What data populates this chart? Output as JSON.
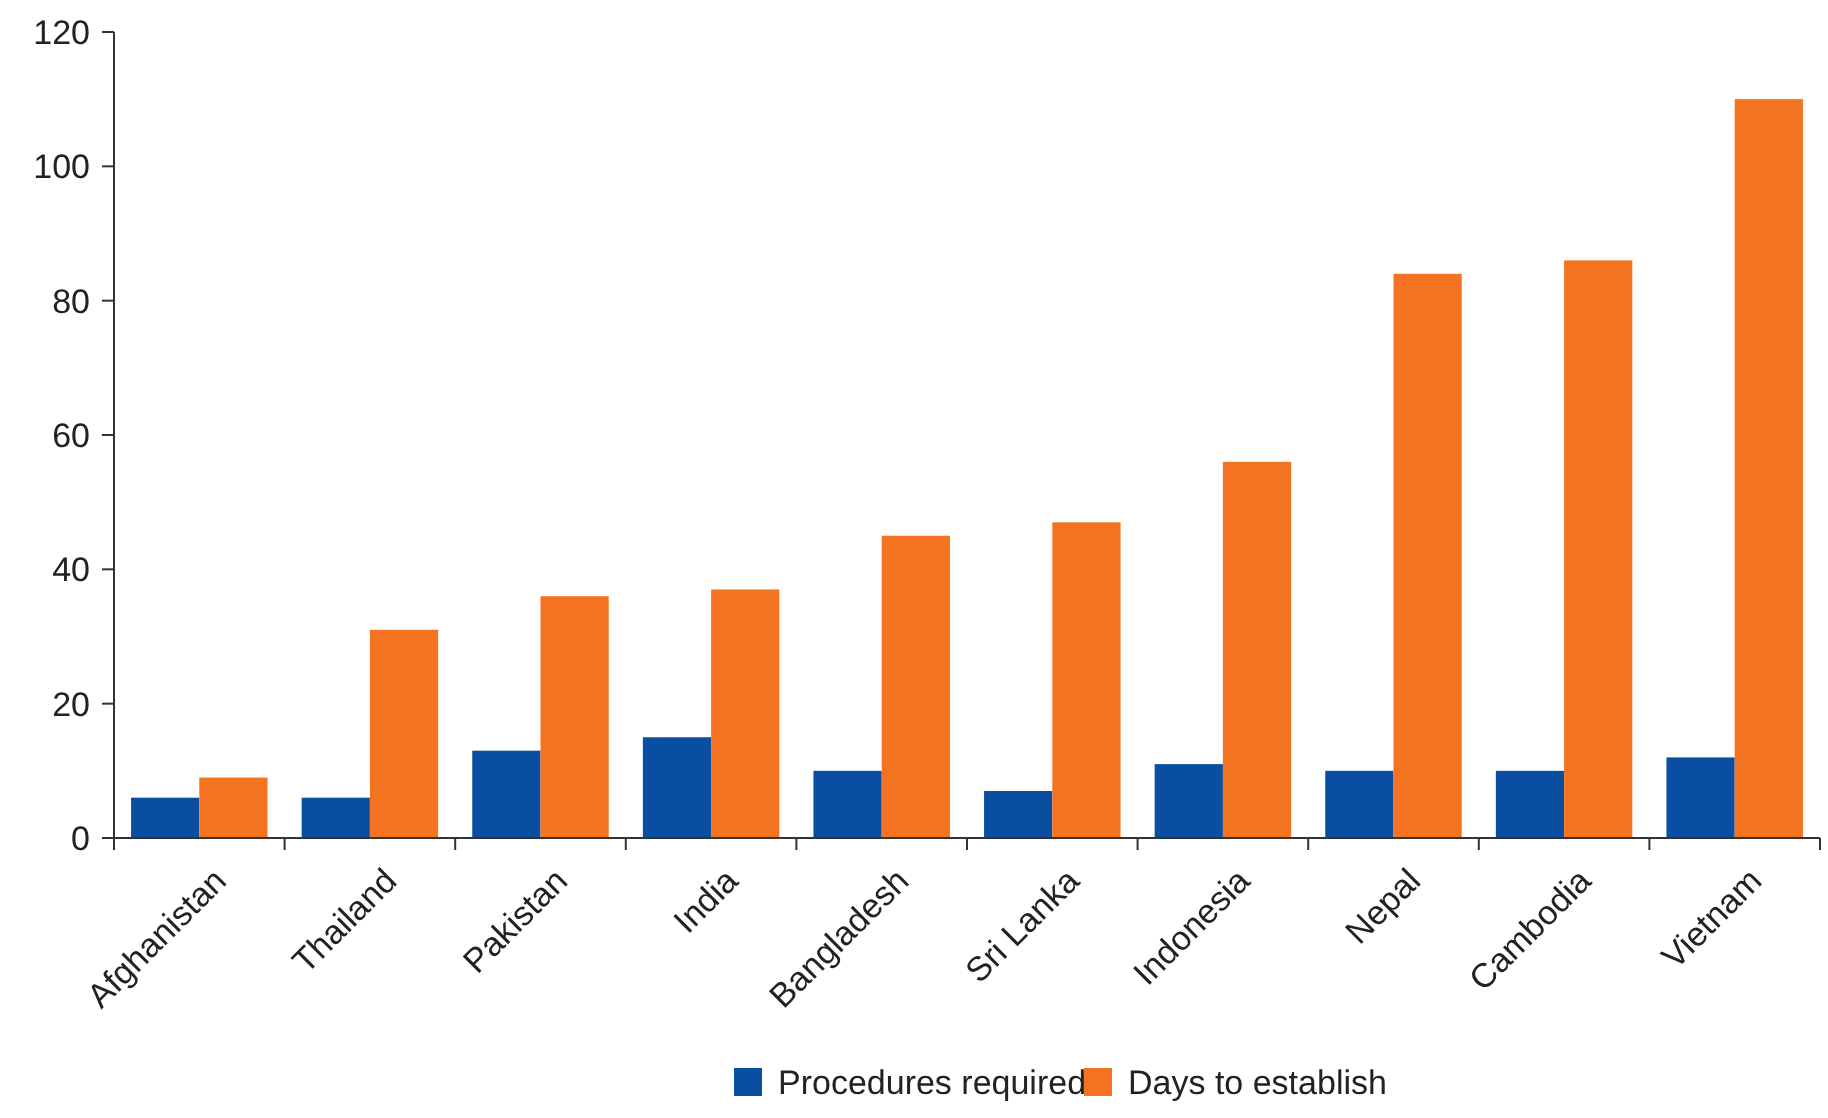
{
  "chart_data": {
    "type": "bar",
    "categories": [
      "Afghanistan",
      "Thailand",
      "Pakistan",
      "India",
      "Bangladesh",
      "Sri Lanka",
      "Indonesia",
      "Nepal",
      "Cambodia",
      "Vietnam"
    ],
    "series": [
      {
        "name": "Procedures required",
        "color": "#0a4ea2",
        "values": [
          6,
          6,
          13,
          15,
          10,
          7,
          11,
          10,
          10,
          12
        ]
      },
      {
        "name": "Days to establish",
        "color": "#f47321",
        "values": [
          9,
          31,
          36,
          37,
          45,
          47,
          56,
          84,
          86,
          110
        ]
      }
    ],
    "ylim": [
      0,
      120
    ],
    "yticks": [
      0,
      20,
      40,
      60,
      80,
      100,
      120
    ],
    "grid": false,
    "legend": "bottom"
  }
}
